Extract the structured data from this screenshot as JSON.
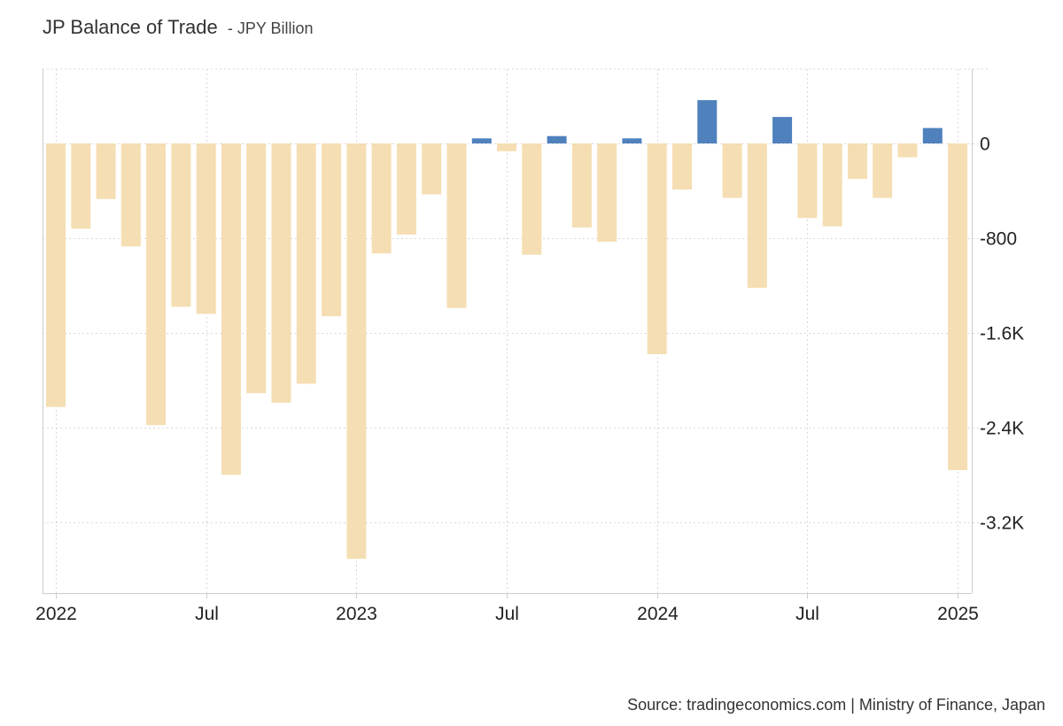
{
  "chart_data": {
    "type": "bar",
    "title": "JP Balance of Trade",
    "subtitle": "JPY Billion",
    "xlabel": "",
    "ylabel": "",
    "ylim": [
      -3800,
      620
    ],
    "grid": true,
    "legend": "none",
    "colors": {
      "positive": "#4f81bd",
      "negative": "#f5deb3",
      "grid": "#d9d9d9",
      "axis": "#cccccc"
    },
    "x_tick_labels": [
      "2022",
      "Jul",
      "2023",
      "Jul",
      "2024",
      "Jul",
      "2025"
    ],
    "x_tick_months": [
      0,
      6,
      12,
      18,
      24,
      30,
      36
    ],
    "y_ticks": [
      0,
      -800,
      -1600,
      -2400,
      -3200
    ],
    "y_tick_labels": [
      "0",
      "-800",
      "-1.6K",
      "-2.4K",
      "-3.2K"
    ],
    "categories": [
      "2022-01",
      "2022-02",
      "2022-03",
      "2022-04",
      "2022-05",
      "2022-06",
      "2022-07",
      "2022-08",
      "2022-09",
      "2022-10",
      "2022-11",
      "2022-12",
      "2023-01",
      "2023-02",
      "2023-03",
      "2023-04",
      "2023-05",
      "2023-06",
      "2023-07",
      "2023-08",
      "2023-09",
      "2023-10",
      "2023-11",
      "2023-12",
      "2024-01",
      "2024-02",
      "2024-03",
      "2024-04",
      "2024-05",
      "2024-06",
      "2024-07",
      "2024-08",
      "2024-09",
      "2024-10",
      "2024-11",
      "2024-12",
      "2025-01"
    ],
    "values": [
      -2226,
      -720,
      -470,
      -870,
      -2380,
      -1380,
      -1440,
      -2800,
      -2110,
      -2190,
      -2030,
      -1460,
      -3510,
      -930,
      -770,
      -430,
      -1390,
      43,
      -66,
      -940,
      62,
      -710,
      -830,
      43,
      -1780,
      -390,
      366,
      -460,
      -1220,
      224,
      -630,
      -700,
      -300,
      -460,
      -117,
      130,
      -2760
    ]
  },
  "footer": {
    "source": "Source: tradingeconomics.com | Ministry of Finance, Japan"
  }
}
